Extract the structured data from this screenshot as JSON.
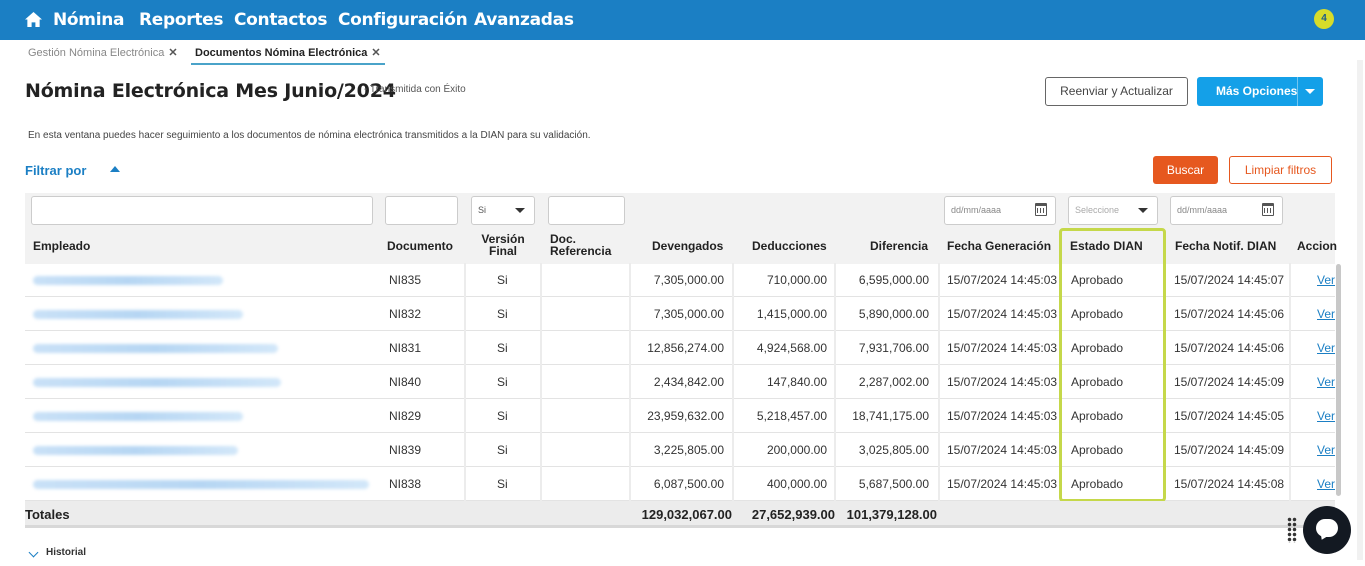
{
  "nav": {
    "items": [
      "Nómina",
      "Reportes",
      "Contactos",
      "Configuración",
      "Avanzadas"
    ],
    "notification_count": "4"
  },
  "tabs": [
    {
      "label": "Gestión Nómina Electrónica",
      "close": "✕"
    },
    {
      "label": "Documentos Nómina Electrónica",
      "close": "✕"
    }
  ],
  "header": {
    "title": "Nómina Electrónica Mes Junio/2024",
    "subtitle": "- Transmitida con Éxito",
    "reenviar_label": "Reenviar y Actualizar",
    "mas_opciones_label": "Más Opciones"
  },
  "description": "En esta ventana puedes hacer seguimiento a los documentos de nómina electrónica transmitidos a la DIAN para su validación.",
  "filters": {
    "title": "Filtrar por",
    "buscar_label": "Buscar",
    "limpiar_label": "Limpiar filtros",
    "version_final_value": "Si",
    "fecha_generacion_placeholder": "dd/mm/aaaa",
    "estado_placeholder": "Seleccione",
    "fecha_notif_placeholder": "dd/mm/aaaa"
  },
  "table": {
    "columns": {
      "empleado": "Empleado",
      "documento": "Documento",
      "version_final_1": "Versión",
      "version_final_2": "Final",
      "doc_ref_1": "Doc.",
      "doc_ref_2": "Referencia",
      "devengados": "Devengados",
      "deducciones": "Deducciones",
      "diferencia": "Diferencia",
      "fecha_generacion": "Fecha Generación",
      "estado_dian": "Estado DIAN",
      "fecha_notif": "Fecha Notif. DIAN",
      "acciones": "Accion"
    },
    "rows": [
      {
        "documento": "NI835",
        "version": "Si",
        "devengados": "7,305,000.00",
        "deducciones": "710,000.00",
        "diferencia": "6,595,000.00",
        "fecha_gen": "15/07/2024 14:45:03",
        "estado": "Aprobado",
        "fecha_notif": "15/07/2024 14:45:07",
        "accion": "Ver"
      },
      {
        "documento": "NI832",
        "version": "Si",
        "devengados": "7,305,000.00",
        "deducciones": "1,415,000.00",
        "diferencia": "5,890,000.00",
        "fecha_gen": "15/07/2024 14:45:03",
        "estado": "Aprobado",
        "fecha_notif": "15/07/2024 14:45:06",
        "accion": "Ver"
      },
      {
        "documento": "NI831",
        "version": "Si",
        "devengados": "12,856,274.00",
        "deducciones": "4,924,568.00",
        "diferencia": "7,931,706.00",
        "fecha_gen": "15/07/2024 14:45:03",
        "estado": "Aprobado",
        "fecha_notif": "15/07/2024 14:45:06",
        "accion": "Ver"
      },
      {
        "documento": "NI840",
        "version": "Si",
        "devengados": "2,434,842.00",
        "deducciones": "147,840.00",
        "diferencia": "2,287,002.00",
        "fecha_gen": "15/07/2024 14:45:03",
        "estado": "Aprobado",
        "fecha_notif": "15/07/2024 14:45:09",
        "accion": "Ver"
      },
      {
        "documento": "NI829",
        "version": "Si",
        "devengados": "23,959,632.00",
        "deducciones": "5,218,457.00",
        "diferencia": "18,741,175.00",
        "fecha_gen": "15/07/2024 14:45:03",
        "estado": "Aprobado",
        "fecha_notif": "15/07/2024 14:45:05",
        "accion": "Ver"
      },
      {
        "documento": "NI839",
        "version": "Si",
        "devengados": "3,225,805.00",
        "deducciones": "200,000.00",
        "diferencia": "3,025,805.00",
        "fecha_gen": "15/07/2024 14:45:03",
        "estado": "Aprobado",
        "fecha_notif": "15/07/2024 14:45:09",
        "accion": "Ver"
      },
      {
        "documento": "NI838",
        "version": "Si",
        "devengados": "6,087,500.00",
        "deducciones": "400,000.00",
        "diferencia": "5,687,500.00",
        "fecha_gen": "15/07/2024 14:45:03",
        "estado": "Aprobado",
        "fecha_notif": "15/07/2024 14:45:08",
        "accion": "Ver"
      }
    ],
    "totals": {
      "label": "Totales",
      "devengados": "129,032,067.00",
      "deducciones": "27,652,939.00",
      "diferencia": "101,379,128.00"
    }
  },
  "historial_label": "Historial",
  "colors": {
    "nav": "#1b7fc4",
    "primary_button": "#14a0e8",
    "buscar": "#e6581f",
    "highlight": "#c5d84a",
    "notification": "#d7dc2a"
  },
  "icons": [
    "home-icon",
    "close-icon",
    "caret-up-icon",
    "chevron-down-icon",
    "calendar-icon",
    "chat-icon",
    "grip-icon"
  ]
}
